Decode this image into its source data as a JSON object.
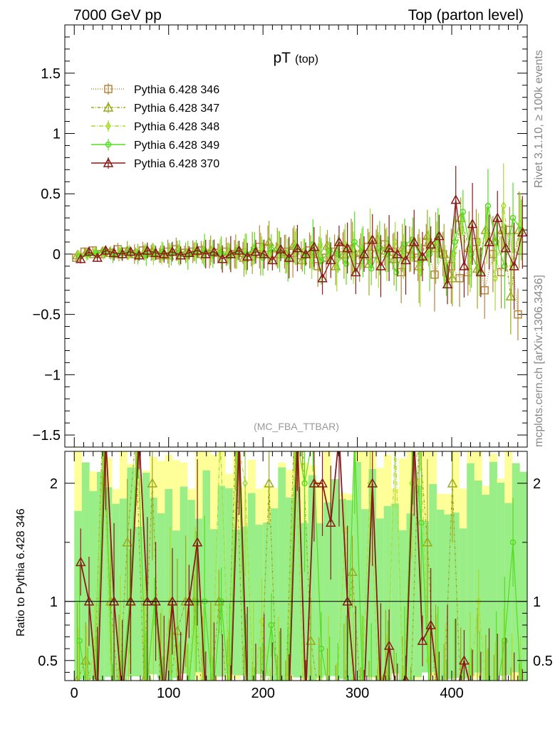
{
  "header": {
    "left_title": "7000 GeV pp",
    "right_title": "Top (parton level)"
  },
  "side_labels": {
    "rivet": "Rivet 3.1.10, ≥ 100k events",
    "mcplots": "mcplots.cern.ch [arXiv:1306.3436]"
  },
  "chart_data": {
    "type": "scatter",
    "title_main": "pT",
    "title_sub": "(top)",
    "watermark": "(MC_FBA_TTBAR)",
    "xlim": [
      -10,
      480
    ],
    "ylim": [
      -1.6,
      1.9
    ],
    "x_ticks": [
      0,
      100,
      200,
      300,
      400
    ],
    "y_ticks": [
      -1.5,
      -1,
      -0.5,
      0,
      0.5,
      1,
      1.5
    ],
    "y_tick_labels": [
      "−1.5",
      "−1",
      "−0.5",
      "0",
      "0.5",
      "1",
      "1.5"
    ],
    "legend_position": "top-left",
    "series": [
      {
        "name": "Pythia 6.428 346",
        "color": "#b5853a",
        "marker": "square",
        "dash": "1,2",
        "values": [
          -0.03,
          0.02,
          0.03,
          0.0,
          0.01,
          0.04,
          0.02,
          0.0,
          0.03,
          0.01,
          -0.01,
          0.02,
          0.04,
          0.01,
          0.02,
          0.03,
          0.0,
          0.01,
          0.02,
          0.0,
          0.01,
          -0.02,
          0.06,
          0.05,
          0.0,
          0.02,
          0.01,
          -0.01,
          0.03,
          -0.1,
          -0.03,
          0.02,
          0.05,
          0.04,
          -0.05,
          0.06,
          0.0,
          0.08,
          0.02,
          -0.15,
          0.04,
          -0.03,
          0.1,
          -0.17,
          0.0,
          -0.1,
          -0.2,
          -0.15,
          0.1,
          -0.3,
          0.0,
          -0.15,
          0.2,
          -0.5
        ]
      },
      {
        "name": "Pythia 6.428 347",
        "color": "#9aaa1a",
        "marker": "triangle",
        "dash": "4,2,1,2",
        "values": [
          -0.01,
          0.01,
          0.0,
          0.02,
          0.01,
          0.0,
          0.03,
          0.0,
          0.01,
          0.02,
          0.0,
          -0.01,
          0.03,
          0.01,
          0.02,
          0.0,
          0.03,
          0.01,
          0.0,
          0.02,
          -0.03,
          0.01,
          0.0,
          0.1,
          0.05,
          0.0,
          0.08,
          -0.05,
          0.02,
          0.0,
          0.07,
          -0.1,
          0.0,
          0.05,
          0.02,
          -0.08,
          0.12,
          0.03,
          -0.04,
          0.05,
          0.0,
          -0.1,
          0.15,
          0.05,
          0.0,
          -0.2,
          0.3,
          0.05,
          -0.12,
          0.2,
          0.1,
          0.2,
          -0.35,
          0.2
        ]
      },
      {
        "name": "Pythia 6.428 348",
        "color": "#a8dc30",
        "marker": "diamond",
        "dash": "6,2,1,2",
        "values": [
          0.0,
          -0.01,
          0.02,
          0.01,
          0.0,
          0.02,
          -0.01,
          0.01,
          0.02,
          0.0,
          0.01,
          0.02,
          0.0,
          -0.01,
          0.02,
          0.01,
          0.0,
          0.03,
          0.01,
          -0.02,
          0.02,
          0.0,
          0.05,
          0.0,
          0.04,
          -0.06,
          0.05,
          0.02,
          -0.05,
          0.08,
          0.0,
          -0.1,
          0.08,
          -0.03,
          0.05,
          0.12,
          -0.05,
          0.0,
          0.1,
          -0.02,
          0.08,
          -0.15,
          0.05,
          0.12,
          -0.1,
          0.0,
          0.2,
          -0.05,
          0.1,
          0.15,
          -0.2,
          0.4,
          -0.1,
          0.25
        ]
      },
      {
        "name": "Pythia 6.428 349",
        "color": "#55dd22",
        "marker": "circle",
        "dash": "",
        "values": [
          -0.02,
          0.0,
          0.01,
          0.02,
          -0.01,
          0.01,
          0.02,
          0.0,
          -0.01,
          0.01,
          0.02,
          0.0,
          0.01,
          -0.01,
          0.02,
          0.03,
          0.0,
          0.01,
          -0.02,
          0.03,
          0.0,
          0.05,
          -0.03,
          0.04,
          0.02,
          -0.05,
          0.06,
          -0.02,
          0.08,
          -0.06,
          0.03,
          0.0,
          -0.08,
          0.1,
          0.02,
          -0.12,
          0.05,
          0.0,
          -0.15,
          0.08,
          0.12,
          -0.05,
          0.0,
          0.15,
          -0.2,
          0.1,
          0.35,
          0.0,
          -0.15,
          0.4,
          0.1,
          -0.1,
          0.3,
          0.2
        ]
      },
      {
        "name": "Pythia 6.428 370",
        "color": "#8b1a1a",
        "marker": "triangle",
        "dash": "",
        "values": [
          -0.04,
          0.02,
          -0.03,
          0.03,
          0.01,
          0.0,
          0.02,
          -0.01,
          0.03,
          0.01,
          0.0,
          0.02,
          -0.01,
          0.01,
          0.03,
          0.0,
          0.02,
          -0.04,
          0.0,
          0.03,
          -0.02,
          0.02,
          0.0,
          -0.05,
          0.04,
          -0.03,
          0.05,
          0.0,
          0.06,
          -0.2,
          -0.05,
          0.1,
          0.05,
          -0.15,
          0.0,
          0.12,
          -0.1,
          0.05,
          0.0,
          -0.05,
          0.1,
          -0.02,
          0.08,
          0.15,
          -0.25,
          0.45,
          -0.1,
          0.25,
          -0.15,
          0.1,
          0.3,
          0.05,
          -0.1,
          0.18
        ]
      }
    ]
  },
  "ratio_data": {
    "ylabel": "Ratio to Pythia 6.428 346",
    "ylim": [
      0.33,
      2.27
    ],
    "y_ticks": [
      0.5,
      1,
      2
    ],
    "y_tick_labels": [
      "0.5",
      "1",
      "2"
    ]
  }
}
